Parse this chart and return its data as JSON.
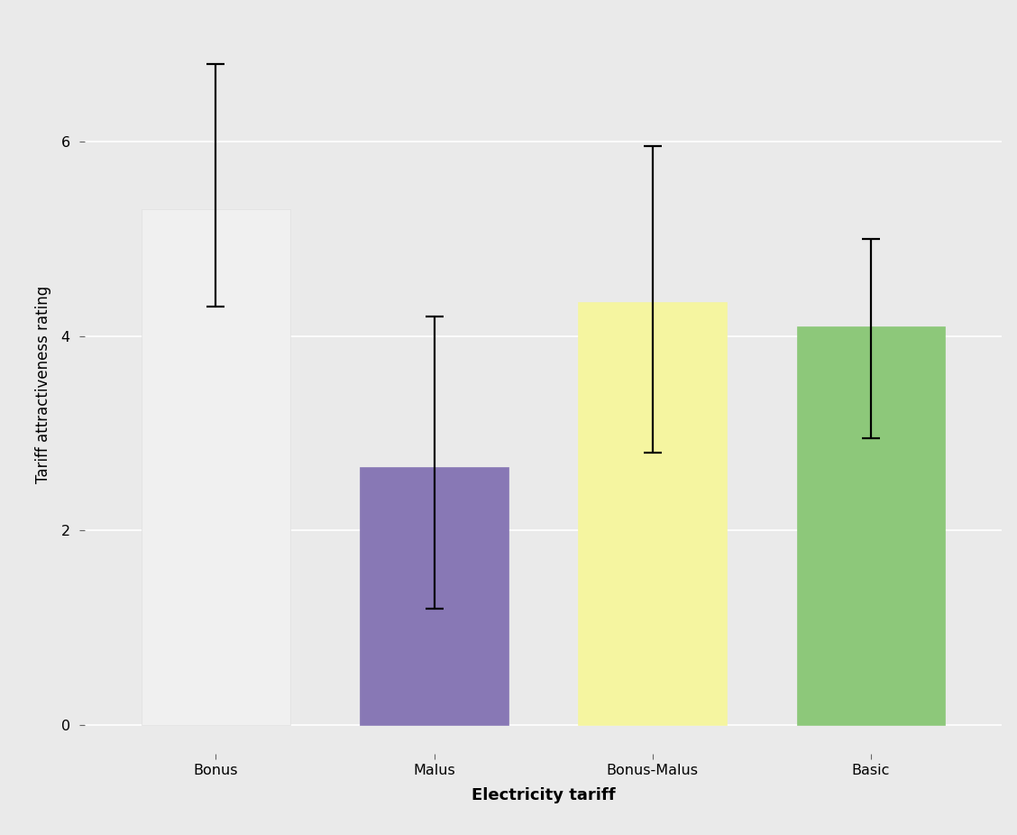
{
  "categories": [
    "Bonus",
    "Malus",
    "Bonus-Malus",
    "Basic"
  ],
  "values": [
    5.3,
    2.65,
    4.35,
    4.1
  ],
  "ci_lower": [
    4.3,
    1.2,
    2.8,
    2.95
  ],
  "ci_upper": [
    6.8,
    4.2,
    5.95,
    5.0
  ],
  "bar_colors": [
    "#F0F0F0",
    "#8878B5",
    "#F5F5A0",
    "#8DC87A"
  ],
  "bar_edge_colors": [
    "#E0E0E0",
    "#8878B5",
    "#F5F5A0",
    "#8DC87A"
  ],
  "xlabel": "Electricity tariff",
  "ylabel": "Tariff attractiveness rating",
  "ylim": [
    -0.3,
    7.3
  ],
  "yticks": [
    0,
    2,
    4,
    6
  ],
  "background_color": "#EAEAEA",
  "plot_background_color": "#EAEAEA",
  "grid_color": "#FFFFFF",
  "xlabel_fontsize": 13,
  "ylabel_fontsize": 12,
  "tick_fontsize": 11.5,
  "bar_width": 0.68,
  "errorbar_linewidth": 1.6,
  "errorbar_capthickness": 1.6,
  "capsize": 7
}
